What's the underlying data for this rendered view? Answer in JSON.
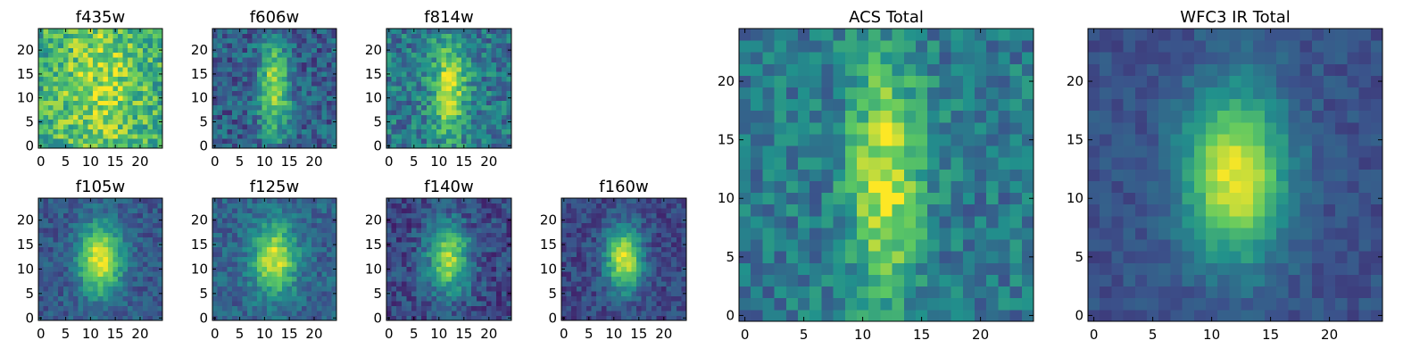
{
  "figure": "HST multi-band cutout mosaic",
  "colormap": [
    "#440154",
    "#3b528b",
    "#21918c",
    "#5ec962",
    "#fde725"
  ],
  "chart_data": [
    {
      "type": "heatmap",
      "title": "f435w",
      "grid": [
        25,
        25
      ],
      "xlim": [
        -0.5,
        24.5
      ],
      "ylim": [
        -0.5,
        24.5
      ],
      "xticks": [
        0,
        5,
        10,
        15,
        20
      ],
      "yticks": [
        0,
        5,
        10,
        15,
        20
      ],
      "peak": {
        "x": 12,
        "y": 12
      },
      "sigma": [
        6,
        12
      ],
      "amp": 0.25,
      "base": 0.6,
      "noise": 0.45,
      "xlabel": "",
      "ylabel": ""
    },
    {
      "type": "heatmap",
      "title": "f606w",
      "grid": [
        25,
        25
      ],
      "xlim": [
        -0.5,
        24.5
      ],
      "ylim": [
        -0.5,
        24.5
      ],
      "xticks": [
        0,
        5,
        10,
        15,
        20
      ],
      "yticks": [
        0,
        5,
        10,
        15,
        20
      ],
      "peak": {
        "x": 12,
        "y": 12
      },
      "sigma": [
        2.2,
        7
      ],
      "amp": 0.55,
      "base": 0.3,
      "noise": 0.35,
      "xlabel": "",
      "ylabel": ""
    },
    {
      "type": "heatmap",
      "title": "f814w",
      "grid": [
        25,
        25
      ],
      "xlim": [
        -0.5,
        24.5
      ],
      "ylim": [
        -0.5,
        24.5
      ],
      "xticks": [
        0,
        5,
        10,
        15,
        20
      ],
      "yticks": [
        0,
        5,
        10,
        15,
        20
      ],
      "peak": {
        "x": 12,
        "y": 12
      },
      "sigma": [
        2.5,
        7
      ],
      "amp": 0.5,
      "base": 0.4,
      "noise": 0.38,
      "xlabel": "",
      "ylabel": ""
    },
    {
      "type": "heatmap",
      "title": "f105w",
      "grid": [
        25,
        25
      ],
      "xlim": [
        -0.5,
        24.5
      ],
      "ylim": [
        -0.5,
        24.5
      ],
      "xticks": [
        0,
        5,
        10,
        15,
        20
      ],
      "yticks": [
        0,
        5,
        10,
        15,
        20
      ],
      "peak": {
        "x": 12,
        "y": 12
      },
      "sigma": [
        3,
        5
      ],
      "amp": 0.7,
      "base": 0.28,
      "noise": 0.22,
      "xlabel": "",
      "ylabel": ""
    },
    {
      "type": "heatmap",
      "title": "f125w",
      "grid": [
        25,
        25
      ],
      "xlim": [
        -0.5,
        24.5
      ],
      "ylim": [
        -0.5,
        24.5
      ],
      "xticks": [
        0,
        5,
        10,
        15,
        20
      ],
      "yticks": [
        0,
        5,
        10,
        15,
        20
      ],
      "peak": {
        "x": 12,
        "y": 12
      },
      "sigma": [
        3,
        5
      ],
      "amp": 0.62,
      "base": 0.32,
      "noise": 0.24,
      "xlabel": "",
      "ylabel": ""
    },
    {
      "type": "heatmap",
      "title": "f140w",
      "grid": [
        25,
        25
      ],
      "xlim": [
        -0.5,
        24.5
      ],
      "ylim": [
        -0.5,
        24.5
      ],
      "xticks": [
        0,
        5,
        10,
        15,
        20
      ],
      "yticks": [
        0,
        5,
        10,
        15,
        20
      ],
      "peak": {
        "x": 12,
        "y": 12
      },
      "sigma": [
        3,
        5
      ],
      "amp": 0.62,
      "base": 0.22,
      "noise": 0.28,
      "xlabel": "",
      "ylabel": ""
    },
    {
      "type": "heatmap",
      "title": "f160w",
      "grid": [
        25,
        25
      ],
      "xlim": [
        -0.5,
        24.5
      ],
      "ylim": [
        -0.5,
        24.5
      ],
      "xticks": [
        0,
        5,
        10,
        15,
        20
      ],
      "yticks": [
        0,
        5,
        10,
        15,
        20
      ],
      "peak": {
        "x": 12,
        "y": 12
      },
      "sigma": [
        2.5,
        4.5
      ],
      "amp": 0.72,
      "base": 0.22,
      "noise": 0.22,
      "xlabel": "",
      "ylabel": ""
    },
    {
      "type": "heatmap",
      "title": "ACS Total",
      "grid": [
        25,
        25
      ],
      "xlim": [
        -0.5,
        24.5
      ],
      "ylim": [
        -0.5,
        24.5
      ],
      "xticks": [
        0,
        5,
        10,
        15,
        20
      ],
      "yticks": [
        0,
        5,
        10,
        15,
        20
      ],
      "peak": {
        "x": 12,
        "y": 12
      },
      "sigma": [
        2.2,
        7
      ],
      "amp": 0.55,
      "base": 0.4,
      "noise": 0.32,
      "xlabel": "",
      "ylabel": ""
    },
    {
      "type": "heatmap",
      "title": "WFC3 IR Total",
      "grid": [
        25,
        25
      ],
      "xlim": [
        -0.5,
        24.5
      ],
      "ylim": [
        -0.5,
        24.5
      ],
      "xticks": [
        0,
        5,
        10,
        15,
        20
      ],
      "yticks": [
        0,
        5,
        10,
        15,
        20
      ],
      "peak": {
        "x": 12,
        "y": 12
      },
      "sigma": [
        3,
        5
      ],
      "amp": 0.72,
      "base": 0.25,
      "noise": 0.14,
      "xlabel": "",
      "ylabel": ""
    }
  ]
}
